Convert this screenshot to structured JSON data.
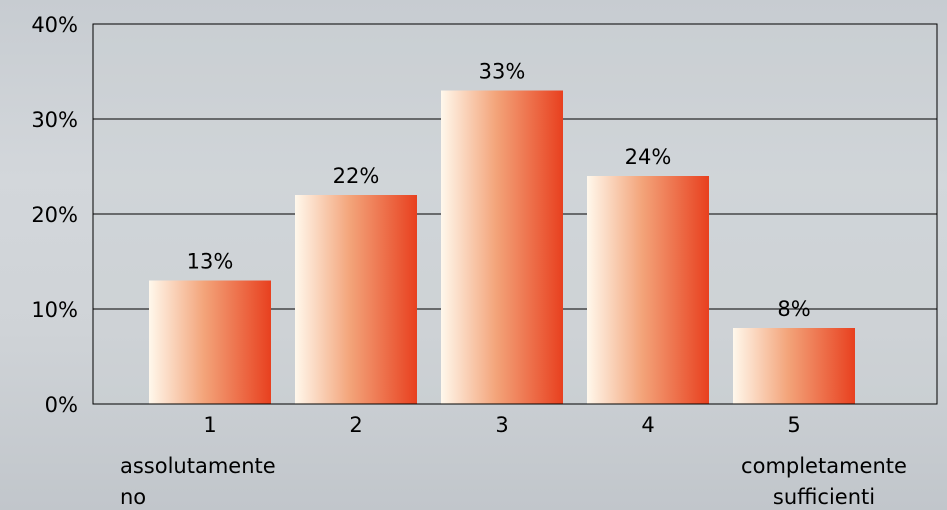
{
  "chart_data": {
    "type": "bar",
    "categories": [
      "1",
      "2",
      "3",
      "4",
      "5"
    ],
    "values": [
      13,
      22,
      33,
      24,
      8
    ],
    "data_labels": [
      "13%",
      "22%",
      "33%",
      "24%",
      "8%"
    ],
    "category_notes": [
      [
        "assolutamente",
        "no"
      ],
      [],
      [],
      [],
      [
        "completamente",
        "sufficienti"
      ]
    ],
    "title": "",
    "xlabel": "",
    "ylabel": "",
    "ylim": [
      0,
      40
    ],
    "yticks": [
      0,
      10,
      20,
      30,
      40
    ],
    "ytick_labels": [
      "0%",
      "10%",
      "20%",
      "30%",
      "40%"
    ],
    "grid": true,
    "legend": "none",
    "colors": {
      "bar_light": "#fff8ec",
      "bar_mid": "#f3a47a",
      "bar_dark": "#e8401f",
      "grid": "#000000",
      "plot_background": "#cbd0d5"
    }
  }
}
